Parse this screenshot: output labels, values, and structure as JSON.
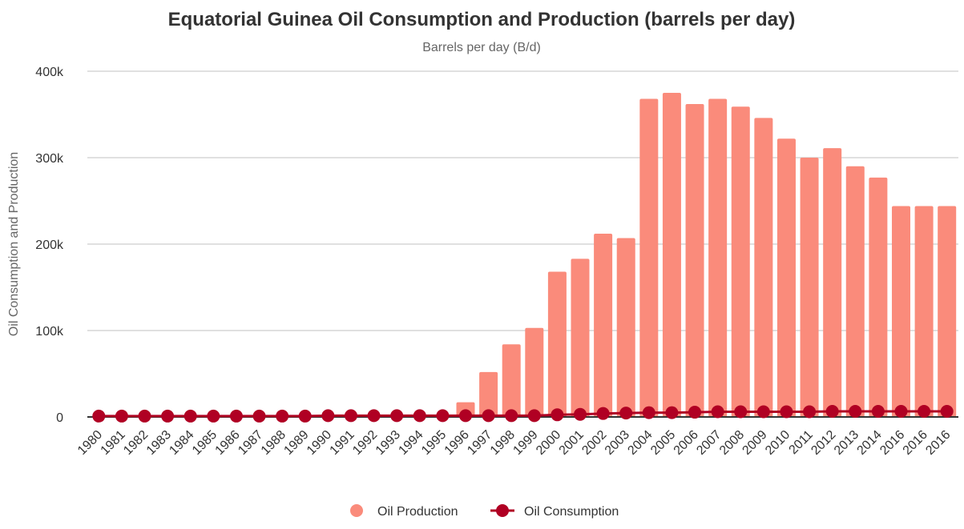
{
  "chart_data": {
    "type": "bar",
    "title": "Equatorial Guinea Oil Consumption and Production (barrels per day)",
    "subtitle": "Barrels per day (B/d)",
    "xlabel": "",
    "ylabel": "Oil Consumption and Production",
    "ylim": [
      0,
      400000
    ],
    "yticks": [
      0,
      100000,
      200000,
      300000,
      400000
    ],
    "ytick_labels": [
      "0",
      "100k",
      "200k",
      "300k",
      "400k"
    ],
    "grid": true,
    "legend_position": "bottom-center",
    "categories": [
      "1980",
      "1981",
      "1982",
      "1983",
      "1984",
      "1985",
      "1986",
      "1987",
      "1988",
      "1989",
      "1990",
      "1991",
      "1992",
      "1993",
      "1994",
      "1995",
      "1996",
      "1997",
      "1998",
      "1999",
      "2000",
      "2001",
      "2002",
      "2003",
      "2004",
      "2005",
      "2006",
      "2007",
      "2008",
      "2009",
      "2010",
      "2011",
      "2012",
      "2013",
      "2014",
      "2016",
      "2016",
      "2016"
    ],
    "series": [
      {
        "name": "Oil Production",
        "type": "bar",
        "color": "#fa8b7b",
        "values": [
          0,
          0,
          0,
          0,
          0,
          0,
          0,
          0,
          0,
          0,
          0,
          0,
          0,
          0,
          0,
          0,
          17000,
          52000,
          84000,
          103000,
          168000,
          183000,
          212000,
          207000,
          368000,
          375000,
          362000,
          368000,
          359000,
          346000,
          322000,
          300000,
          311000,
          290000,
          277000,
          244000,
          244000,
          244000
        ]
      },
      {
        "name": "Oil Consumption",
        "type": "line",
        "color": "#b00023",
        "values": [
          1000,
          1000,
          1000,
          1000,
          1000,
          1000,
          1000,
          1000,
          1000,
          1000,
          1500,
          1500,
          1500,
          1500,
          1500,
          1500,
          1500,
          1500,
          1500,
          1500,
          2500,
          3000,
          4000,
          4500,
          5000,
          5000,
          5500,
          6000,
          6000,
          6000,
          6000,
          6000,
          6500,
          6500,
          6500,
          6500,
          6500,
          6500
        ]
      }
    ]
  }
}
